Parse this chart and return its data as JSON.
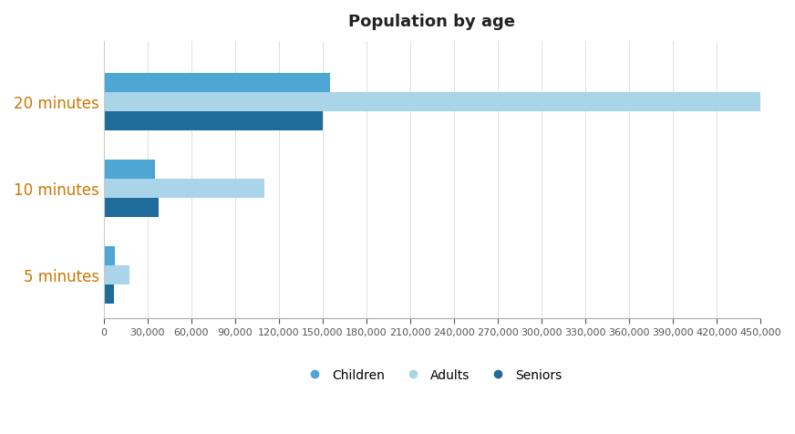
{
  "title": "Population by age",
  "categories": [
    "20 minutes",
    "10 minutes",
    "5 minutes"
  ],
  "series": [
    {
      "label": "Children",
      "color": "#4da6d4",
      "values": [
        155000,
        35000,
        8000
      ]
    },
    {
      "label": "Adults",
      "color": "#aad4e8",
      "values": [
        450000,
        110000,
        18000
      ]
    },
    {
      "label": "Seniors",
      "color": "#1f6b9a",
      "values": [
        150000,
        38000,
        7000
      ]
    }
  ],
  "xlim": [
    0,
    450000
  ],
  "xticks": [
    0,
    30000,
    60000,
    90000,
    120000,
    150000,
    180000,
    210000,
    240000,
    270000,
    300000,
    330000,
    360000,
    390000,
    420000,
    450000
  ],
  "background_color": "#ffffff",
  "title_fontsize": 13,
  "tick_color": "#555555",
  "bar_height": 0.22,
  "ytick_color": "#cc7700",
  "ytick_fontsize": 12,
  "xtick_fontsize": 8
}
